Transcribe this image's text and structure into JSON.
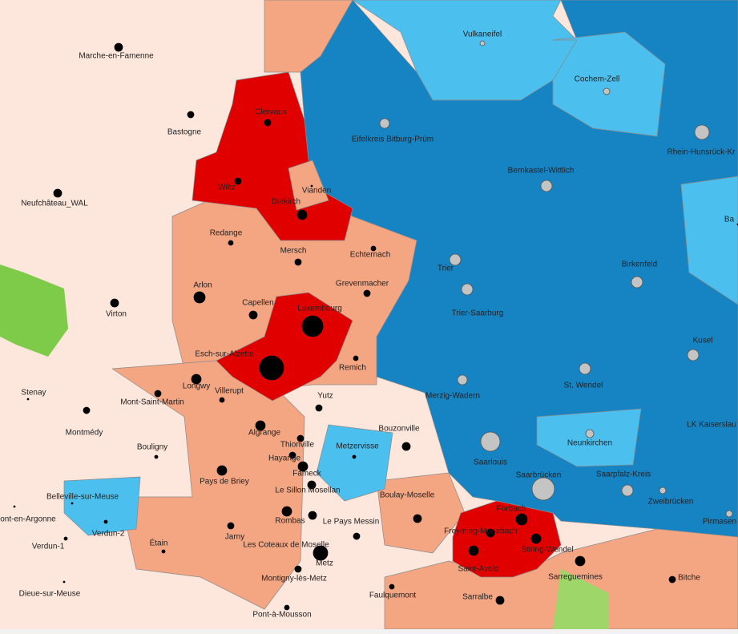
{
  "labels": [
    "Marche-en-Famenne",
    "Bastogne",
    "Neufchâteau_WAL",
    "Virton",
    "Stenay",
    "Montmédy",
    "Bouligny",
    "Étain",
    "Jarny",
    "Verdun-1",
    "Verdun-2",
    "Belleville-sur-Meuse",
    "ont-en-Argonne",
    "Dieue-sur-Meuse",
    "Clervaux",
    "Wiltz",
    "Diekirch",
    "Vianden",
    "Redange",
    "Mersch",
    "Echternach",
    "Grevenmacher",
    "Arlon",
    "Capellen",
    "Luxembourg",
    "Esch-sur-Alzette",
    "Remich",
    "Longwy",
    "Villerupt",
    "Mont-Saint-Martin",
    "Yutz",
    "Algrange",
    "Thionville",
    "Hayange",
    "Fameck",
    "Le Sillon Mosellan",
    "Metzervisse",
    "Bouzonville",
    "Boulay-Moselle",
    "Pays de Briey",
    "Rombas",
    "Le Pays Messin",
    "Les Coteaux de Moselle",
    "Metz",
    "Montigny-lès-Metz",
    "Faulquemont",
    "Pont-à-Mousson",
    "Vulkaneifel",
    "Cochem-Zell",
    "Eifelkreis Bitburg-Prüm",
    "Rhein-Hunsrück-Kr",
    "Bernkastel-Wittlich",
    "Trier",
    "Trier-Saarburg",
    "Birkenfeld",
    "Kusel",
    "St. Wendel",
    "Merzig-Wadern",
    "LK Kaiserslau",
    "Neunkirchen",
    "Saarlouis",
    "Saarbrücken",
    "Saarpfalz-Kreis",
    "Zweibrücken",
    "Pirmasen",
    "Forbach",
    "Freyming-Merlebach",
    "Stiring-Wendel",
    "Saint-Avold",
    "Sarreguemines",
    "Sarralbe",
    "Bitche",
    "Ba"
  ]
}
